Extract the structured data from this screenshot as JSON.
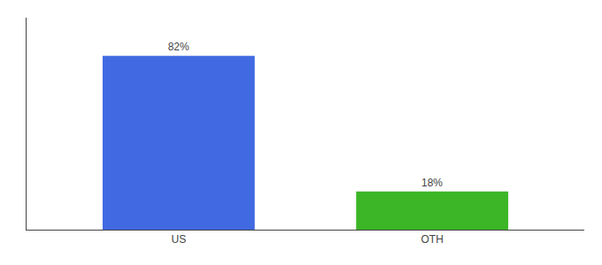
{
  "chart_data": {
    "type": "bar",
    "categories": [
      "US",
      "OTH"
    ],
    "values": [
      82,
      18
    ],
    "value_labels": [
      "82%",
      "18%"
    ],
    "colors": [
      "#4169E1",
      "#3CB527"
    ],
    "ylim": [
      0,
      100
    ],
    "data_labels": true,
    "tick_labels": "x",
    "grid": false
  }
}
